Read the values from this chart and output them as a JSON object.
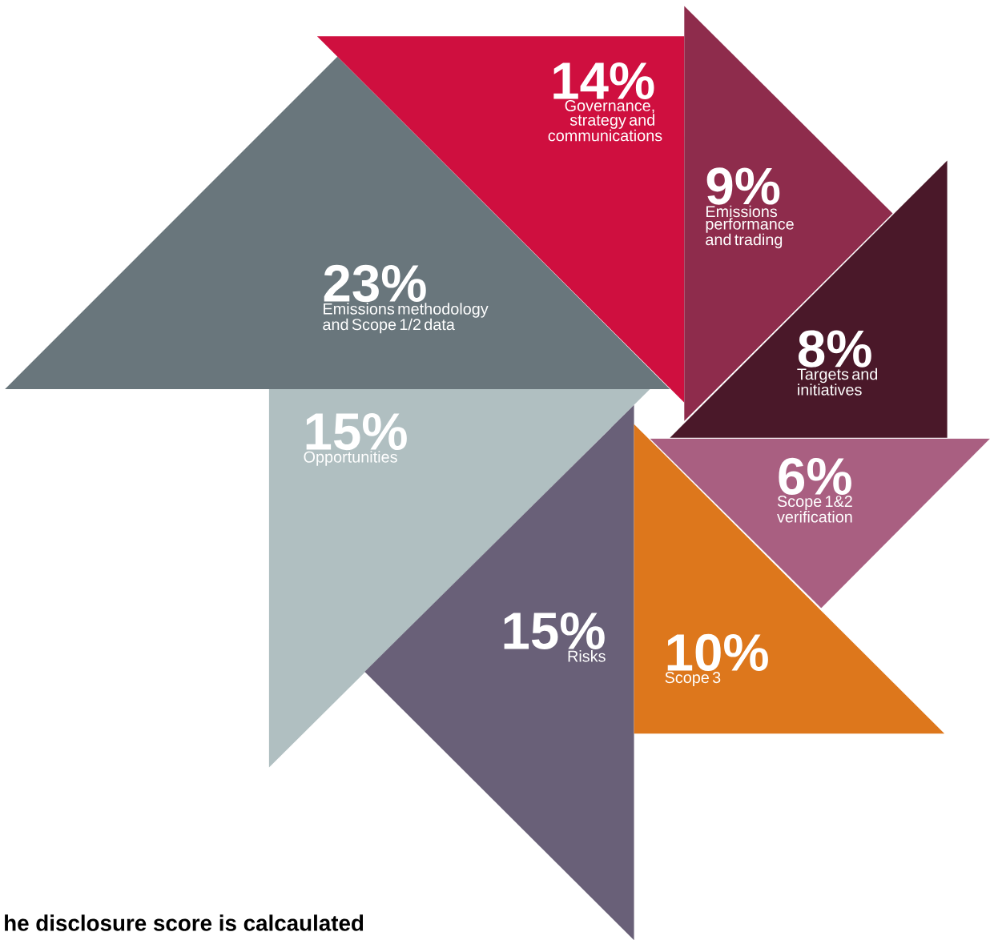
{
  "chart_data": {
    "type": "other",
    "categories": [
      "Governance, strategy and communications",
      "Emissions methodology and Scope 1/2 data",
      "Emissions performance and trading",
      "Targets and initiatives",
      "Scope 1&2 verification",
      "Scope 3",
      "Risks",
      "Opportunities"
    ],
    "values": [
      14,
      23,
      9,
      8,
      6,
      10,
      15,
      15
    ],
    "value_labels": [
      "14%",
      "23%",
      "9%",
      "8%",
      "6%",
      "10%",
      "15%",
      "15%"
    ],
    "colors": [
      "#cf0f3f",
      "#69767c",
      "#8e2c4c",
      "#4a1829",
      "#a95f81",
      "#dd771c",
      "#696078",
      "#b0bfc1"
    ],
    "annotations": [
      "he disclosure score is calcaulated"
    ]
  }
}
